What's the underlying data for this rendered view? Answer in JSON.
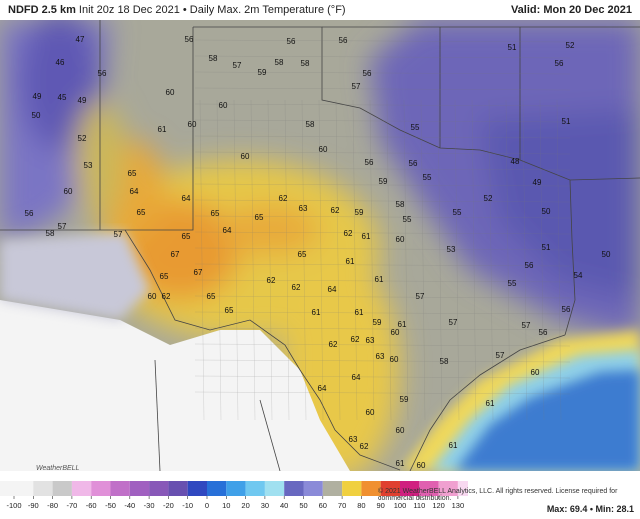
{
  "header": {
    "model": "NDFD 2.5 km",
    "description": "Init 20z 18 Dec 2021 • Daily Max. 2m Temperature (°F)",
    "valid": "Valid: Mon 20 Dec 2021"
  },
  "map_labels": [
    47,
    56,
    46,
    45,
    49,
    50,
    49,
    52,
    53,
    60,
    56,
    57,
    58,
    57,
    61,
    60,
    56,
    58,
    57,
    59,
    58,
    58,
    56,
    56,
    60,
    60,
    58,
    60,
    65,
    64,
    65,
    64,
    65,
    65,
    62,
    63,
    64,
    65,
    67,
    67,
    65,
    60,
    62,
    65,
    65,
    62,
    62,
    65,
    64,
    62,
    59,
    62,
    61,
    61,
    60,
    61,
    61,
    61,
    59,
    61,
    62,
    62,
    63,
    60,
    64,
    64,
    63,
    60,
    58,
    59,
    60,
    60,
    63,
    62,
    61,
    60,
    61,
    61,
    60,
    57,
    56,
    56,
    57,
    56,
    54,
    55,
    52,
    48,
    49,
    50,
    51,
    50,
    51,
    52,
    51,
    56,
    57,
    56,
    55,
    55,
    53,
    57,
    57,
    55,
    55,
    59,
    58,
    56,
    56,
    60
  ],
  "colorbar": {
    "ticks": [
      -100,
      -90,
      -80,
      -70,
      -60,
      -50,
      -40,
      -30,
      -20,
      -10,
      0,
      10,
      20,
      30,
      40,
      50,
      60,
      70,
      80,
      90,
      100,
      110,
      120,
      130
    ],
    "colors": [
      "#f4f4f4",
      "#e2e2e2",
      "#c9c9c9",
      "#f0b8e8",
      "#e090d8",
      "#c070c8",
      "#a060c0",
      "#8858b8",
      "#6850b0",
      "#3048c0",
      "#2870d8",
      "#40a0e8",
      "#70c8f0",
      "#a0e0f0",
      "#6868c0",
      "#8a8ad8",
      "#b0b0a0",
      "#f0d040",
      "#f09030",
      "#e04030",
      "#d02080",
      "#e060b0",
      "#f0a0d0",
      "#f8d8f0"
    ]
  },
  "footer": {
    "copyright": "© 2021 WeatherBELL Analytics, LLC. All rights reserved. License required for commercial distribution.",
    "stats": "Max: 69.4 • Min: 28.1",
    "logo": "WeatherBELL"
  }
}
